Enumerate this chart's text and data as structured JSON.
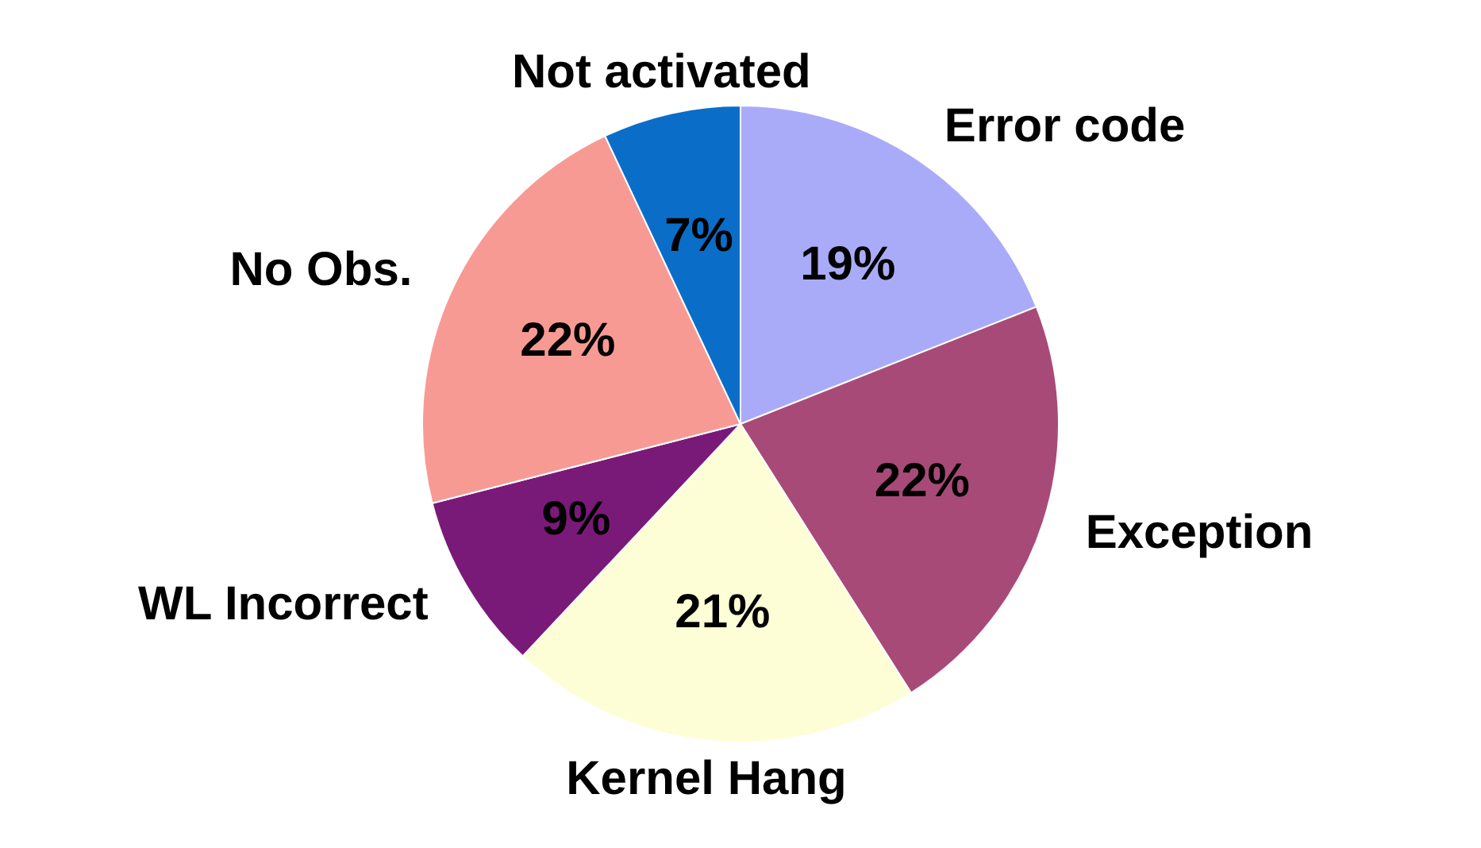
{
  "chart_data": {
    "type": "pie",
    "categories": [
      "Error code",
      "Exception",
      "Kernel Hang",
      "WL Incorrect",
      "No Obs.",
      "Not activated"
    ],
    "values": [
      19,
      22,
      21,
      9,
      22,
      7
    ],
    "value_labels": [
      "19%",
      "22%",
      "21%",
      "9%",
      "22%",
      "7%"
    ],
    "colors": [
      "#aaabf8",
      "#a84a78",
      "#fefed6",
      "#7a1a78",
      "#f89a94",
      "#0a6ec8"
    ],
    "legend": false
  }
}
